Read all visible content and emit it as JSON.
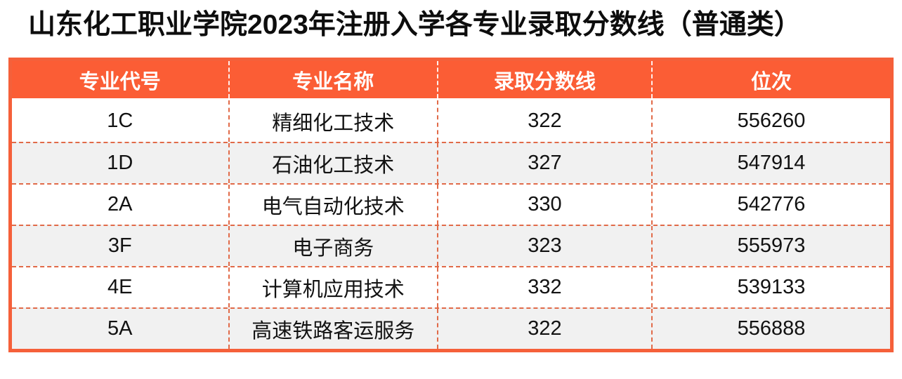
{
  "page": {
    "title": "山东化工职业学院2023年注册入学各专业录取分数线（普通类）"
  },
  "colors": {
    "header_bg": "#fb5d35",
    "table_border": "#f5603a",
    "dashed_divider": "#e16a48",
    "row_alt_bg": "#f1f1f1",
    "header_text": "#ffffff",
    "body_text": "#121212"
  },
  "table": {
    "columns": [
      "专业代号",
      "专业名称",
      "录取分数线",
      "位次"
    ],
    "rows": [
      {
        "code": "1C",
        "name": "精细化工技术",
        "score": "322",
        "rank": "556260"
      },
      {
        "code": "1D",
        "name": "石油化工技术",
        "score": "327",
        "rank": "547914"
      },
      {
        "code": "2A",
        "name": "电气自动化技术",
        "score": "330",
        "rank": "542776"
      },
      {
        "code": "3F",
        "name": "电子商务",
        "score": "323",
        "rank": "555973"
      },
      {
        "code": "4E",
        "name": "计算机应用技术",
        "score": "332",
        "rank": "539133"
      },
      {
        "code": "5A",
        "name": "高速铁路客运服务",
        "score": "322",
        "rank": "556888"
      }
    ]
  }
}
